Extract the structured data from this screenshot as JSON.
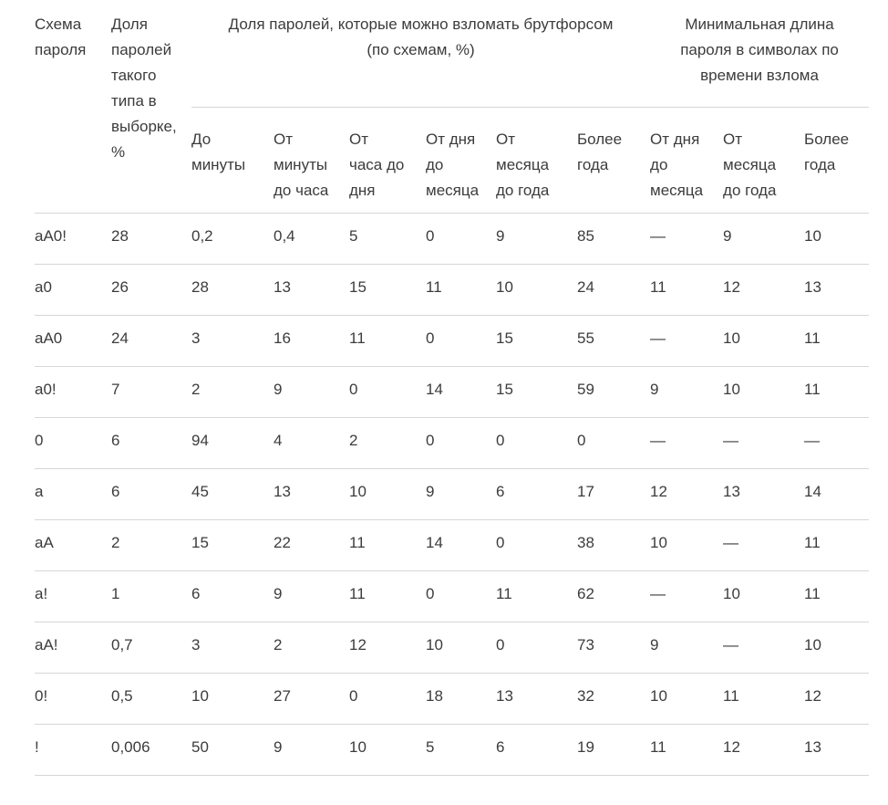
{
  "styles": {
    "text_color": "#3c3c3c",
    "divider_color": "#d6d6d6",
    "background_color": "#ffffff"
  },
  "chart_data": {
    "type": "table",
    "title": "",
    "header": {
      "scheme": "Схема\nпароля",
      "share": "Доля\nпаролей\nтакого\nтипа в\nвыборке,\n%",
      "crack_group": "Доля паролей, которые можно взломать брутфорсом\n(по схемам, %)",
      "minlen_group": "Минимальная длина\nпароля в символах по\nвремени взлома",
      "crack_cols": [
        "До\nминуты",
        "От\nминуты\nдо часа",
        "От\nчаса до\nдня",
        "От дня\nдо\nмесяца",
        "От\nмесяца\nдо года",
        "Более\nгода"
      ],
      "minlen_cols": [
        "От дня\nдо\nмесяца",
        "От\nмесяца\nдо года",
        "Более\nгода"
      ]
    },
    "rows": [
      {
        "scheme": "aA0!",
        "share": "28",
        "crack": [
          "0,2",
          "0,4",
          "5",
          "0",
          "9",
          "85"
        ],
        "minlen": [
          "—",
          "9",
          "10"
        ]
      },
      {
        "scheme": "a0",
        "share": "26",
        "crack": [
          "28",
          "13",
          "15",
          "11",
          "10",
          "24"
        ],
        "minlen": [
          "11",
          "12",
          "13"
        ]
      },
      {
        "scheme": "aA0",
        "share": "24",
        "crack": [
          "3",
          "16",
          "11",
          "0",
          "15",
          "55"
        ],
        "minlen": [
          "—",
          "10",
          "11"
        ]
      },
      {
        "scheme": "a0!",
        "share": "7",
        "crack": [
          "2",
          "9",
          "0",
          "14",
          "15",
          "59"
        ],
        "minlen": [
          "9",
          "10",
          "11"
        ]
      },
      {
        "scheme": "0",
        "share": "6",
        "crack": [
          "94",
          "4",
          "2",
          "0",
          "0",
          "0"
        ],
        "minlen": [
          "—",
          "—",
          "—"
        ]
      },
      {
        "scheme": "a",
        "share": "6",
        "crack": [
          "45",
          "13",
          "10",
          "9",
          "6",
          "17"
        ],
        "minlen": [
          "12",
          "13",
          "14"
        ]
      },
      {
        "scheme": "aA",
        "share": "2",
        "crack": [
          "15",
          "22",
          "11",
          "14",
          "0",
          "38"
        ],
        "minlen": [
          "10",
          "—",
          "11"
        ]
      },
      {
        "scheme": "a!",
        "share": "1",
        "crack": [
          "6",
          "9",
          "11",
          "0",
          "11",
          "62"
        ],
        "minlen": [
          "—",
          "10",
          "11"
        ]
      },
      {
        "scheme": "aA!",
        "share": "0,7",
        "crack": [
          "3",
          "2",
          "12",
          "10",
          "0",
          "73"
        ],
        "minlen": [
          "9",
          "—",
          "10"
        ]
      },
      {
        "scheme": "0!",
        "share": "0,5",
        "crack": [
          "10",
          "27",
          "0",
          "18",
          "13",
          "32"
        ],
        "minlen": [
          "10",
          "11",
          "12"
        ]
      },
      {
        "scheme": "!",
        "share": "0,006",
        "crack": [
          "50",
          "9",
          "10",
          "5",
          "6",
          "19"
        ],
        "minlen": [
          "11",
          "12",
          "13"
        ]
      }
    ]
  }
}
